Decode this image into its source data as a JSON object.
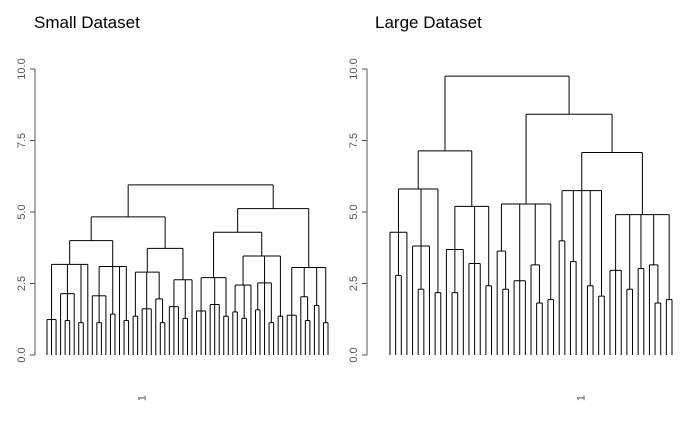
{
  "chart_data": [
    {
      "type": "dendrogram",
      "title": "Small Dataset",
      "xlabel": "",
      "ylabel": "",
      "ylim": [
        0,
        10
      ],
      "yticks": [
        "0.0",
        "2.5",
        "5.0",
        "7.5",
        "10.0"
      ],
      "leaf_count": 56,
      "leaf_label_note": "1",
      "tree": [
        [
          [
            [
              [
                0.2,
                0.3,
                0.4
              ],
              [
                0.6,
                [
                  0.3,
                  0.5
                ],
                0.2
              ],
              [
                0.4,
                0.3
              ],
              0.2
            ],
            [
              [
                0.5,
                [
                  0.3,
                  0.4
                ],
                0.3
              ],
              [
                0.8,
                0.4
              ],
              0.4,
              [
                0.5,
                0.3
              ]
            ]
          ],
          [
            [
              [
                0.7,
                0.3
              ],
              [
                0.9,
                0.4,
                0.3
              ],
              [
                0.6,
                [
                  0.4,
                  0.2
                ]
              ]
            ],
            [
              [
                1.0,
                0.5,
                0.3
              ],
              [
                0.6,
                0.4
              ],
              0.3
            ]
          ]
        ],
        [
          [
            [
              [
                0.8,
                0.5,
                0.3
              ],
              [
                1.1,
                0.6,
                0.4
              ],
              [
                0.7,
                0.3
              ]
            ],
            [
              [
                [
                  0.9,
                  0.4
                ],
                [
                  0.6,
                  0.3
                ],
                0.4
              ],
              [
                [
                  1.0,
                  0.5
                ],
                0.6,
                [
                  0.4,
                  0.3
                ]
              ],
              [
                0.7,
                0.4
              ]
            ]
          ],
          [
            [
              0.6,
              0.3,
              0.2
            ],
            [
              0.9,
              [
                0.5,
                0.4
              ]
            ],
            [
              1.2,
              0.5
            ],
            [
              0.4,
              0.3
            ]
          ]
        ]
      ]
    },
    {
      "type": "dendrogram",
      "title": "Large Dataset",
      "xlabel": "",
      "ylabel": "",
      "ylim": [
        0,
        10
      ],
      "yticks": [
        "0.0",
        "2.5",
        "5.0",
        "7.5",
        "10.0"
      ],
      "leaf_count": 56,
      "leaf_label_note": "1",
      "tree": [
        [
          [
            [
              0.6,
              [
                1.2,
                0.8
              ],
              0.4
            ],
            [
              1.5,
              [
                0.8,
                0.5
              ],
              0.6
            ],
            [
              0.7,
              0.4
            ]
          ],
          [
            [
              1.1,
              [
                0.7,
                0.5
              ],
              0.6
            ],
            [
              1.4,
              0.8,
              0.5
            ],
            [
              0.9,
              0.4
            ]
          ]
        ],
        [
          [
            [
              0.7,
              [
                0.8,
                0.5
              ]
            ],
            [
              0.9,
              0.6,
              0.4
            ],
            [
              1.1,
              [
                0.4,
                0.3
              ]
            ],
            [
              0.5,
              0.3
            ]
          ],
          [
            [
              [
                2.2,
                1.1
              ],
              [
                1.6,
                0.8
              ],
              0.5,
              [
                0.9,
                0.4
              ],
              [
                0.6,
                0.3
              ]
            ],
            [
              [
                1.2,
                0.7,
                0.5
              ],
              [
                0.8,
                0.4
              ],
              [
                1.4,
                0.6
              ],
              [
                0.7,
                [
                  0.4,
                  0.3
                ]
              ],
              [
                0.5,
                0.3
              ]
            ]
          ]
        ]
      ]
    }
  ]
}
